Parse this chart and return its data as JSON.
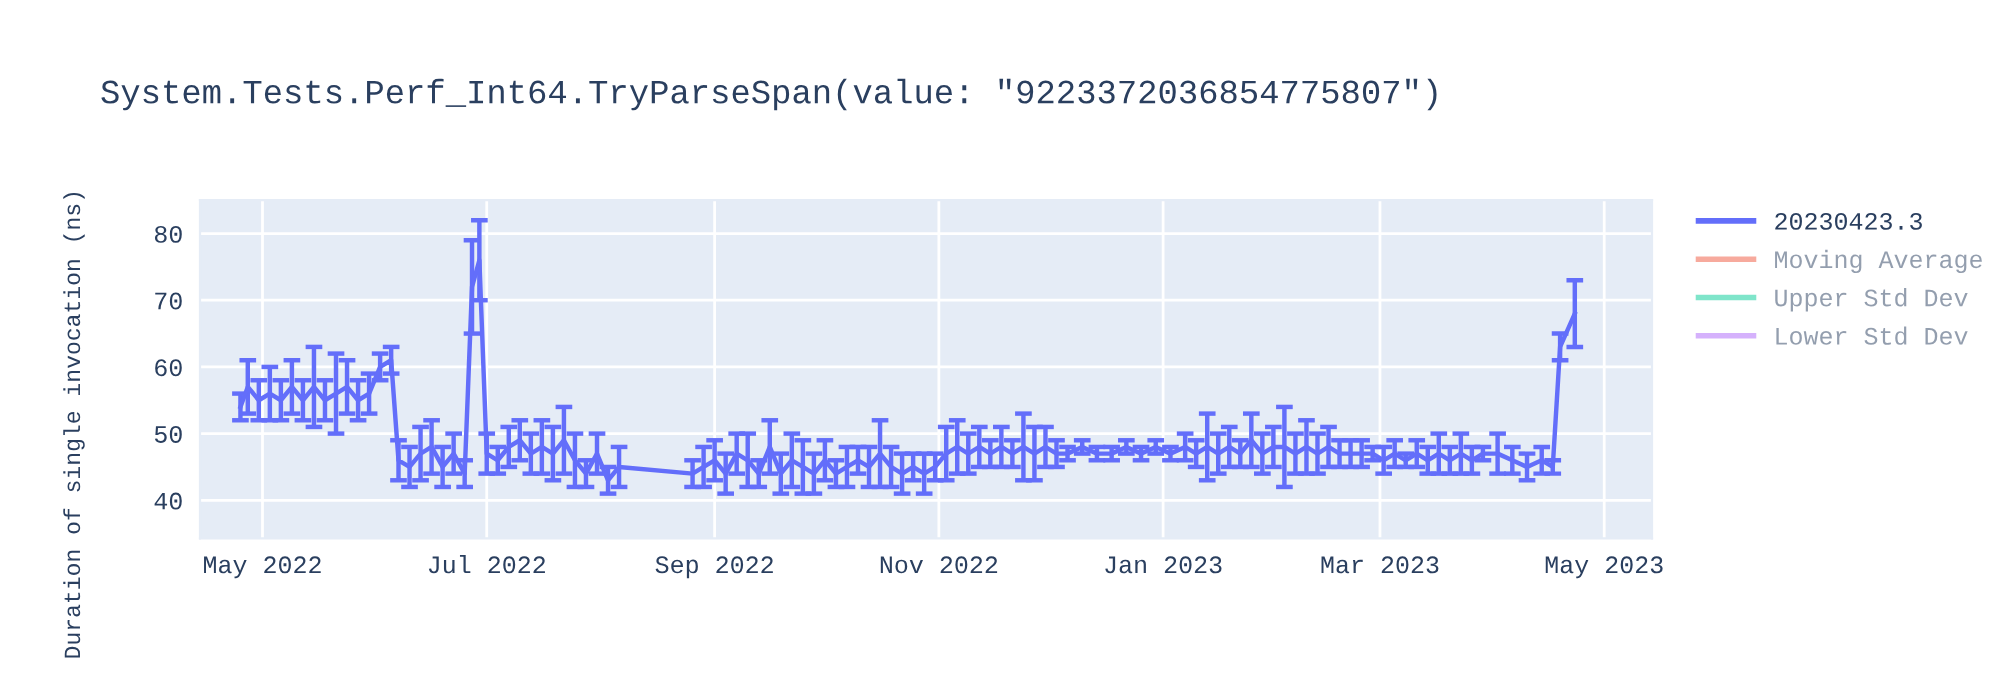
{
  "chart_data": {
    "type": "line",
    "title": "System.Tests.Perf_Int64.TryParseSpan(value: \"9223372036854775807\")",
    "ylabel": "Duration of single invocation (ns)",
    "x": [
      "2022-04-25",
      "2022-04-27",
      "2022-04-30",
      "2022-05-03",
      "2022-05-06",
      "2022-05-09",
      "2022-05-12",
      "2022-05-15",
      "2022-05-18",
      "2022-05-21",
      "2022-05-24",
      "2022-05-27",
      "2022-05-30",
      "2022-06-02",
      "2022-06-05",
      "2022-06-07",
      "2022-06-10",
      "2022-06-13",
      "2022-06-16",
      "2022-06-19",
      "2022-06-22",
      "2022-06-25",
      "2022-06-27",
      "2022-06-29",
      "2022-07-01",
      "2022-07-04",
      "2022-07-07",
      "2022-07-10",
      "2022-07-13",
      "2022-07-16",
      "2022-07-19",
      "2022-07-22",
      "2022-07-25",
      "2022-07-28",
      "2022-07-31",
      "2022-08-03",
      "2022-08-06",
      "2022-08-26",
      "2022-08-29",
      "2022-09-01",
      "2022-09-04",
      "2022-09-07",
      "2022-09-10",
      "2022-09-13",
      "2022-09-16",
      "2022-09-19",
      "2022-09-22",
      "2022-09-25",
      "2022-09-28",
      "2022-10-01",
      "2022-10-04",
      "2022-10-07",
      "2022-10-10",
      "2022-10-13",
      "2022-10-16",
      "2022-10-19",
      "2022-10-22",
      "2022-10-25",
      "2022-10-28",
      "2022-10-31",
      "2022-11-03",
      "2022-11-06",
      "2022-11-09",
      "2022-11-12",
      "2022-11-15",
      "2022-11-18",
      "2022-11-21",
      "2022-11-24",
      "2022-11-27",
      "2022-11-30",
      "2022-12-03",
      "2022-12-06",
      "2022-12-10",
      "2022-12-14",
      "2022-12-18",
      "2022-12-22",
      "2022-12-26",
      "2022-12-30",
      "2023-01-03",
      "2023-01-07",
      "2023-01-10",
      "2023-01-13",
      "2023-01-16",
      "2023-01-19",
      "2023-01-22",
      "2023-01-25",
      "2023-01-28",
      "2023-01-31",
      "2023-02-03",
      "2023-02-06",
      "2023-02-09",
      "2023-02-12",
      "2023-02-15",
      "2023-02-18",
      "2023-02-21",
      "2023-02-24",
      "2023-02-27",
      "2023-03-02",
      "2023-03-05",
      "2023-03-08",
      "2023-03-11",
      "2023-03-14",
      "2023-03-17",
      "2023-03-20",
      "2023-03-23",
      "2023-03-26",
      "2023-03-29",
      "2023-04-02",
      "2023-04-06",
      "2023-04-10",
      "2023-04-14",
      "2023-04-17",
      "2023-04-19",
      "2023-04-23"
    ],
    "series": [
      {
        "name": "20230423.3",
        "color": "#636efa",
        "values": [
          54,
          57,
          55,
          56,
          55,
          57,
          55,
          57,
          55,
          56,
          57,
          55,
          56,
          60,
          61,
          46,
          45,
          47,
          48,
          45,
          47,
          44,
          72,
          76,
          47,
          46,
          48,
          49,
          47,
          48,
          47,
          49,
          46,
          44,
          47,
          43,
          45,
          44,
          45,
          46,
          44,
          47,
          46,
          44,
          48,
          44,
          46,
          45,
          44,
          46,
          44,
          45,
          46,
          45,
          47,
          45,
          44,
          45,
          44,
          45,
          47,
          48,
          47,
          48,
          47,
          48,
          47,
          48,
          47,
          48,
          47,
          47,
          48,
          47,
          47,
          48,
          47,
          48,
          47,
          48,
          47,
          48,
          47,
          48,
          47,
          49,
          47,
          48,
          48,
          47,
          48,
          47,
          48,
          47,
          47,
          47,
          47,
          46,
          47,
          46,
          47,
          46,
          47,
          46,
          47,
          46,
          47,
          47,
          46,
          45,
          46,
          45,
          63,
          68
        ],
        "errors": [
          2,
          4,
          3,
          4,
          3,
          4,
          3,
          6,
          3,
          6,
          4,
          3,
          3,
          2,
          2,
          3,
          3,
          4,
          4,
          3,
          3,
          2,
          7,
          6,
          3,
          2,
          3,
          3,
          3,
          4,
          4,
          5,
          4,
          2,
          3,
          2,
          3,
          2,
          3,
          3,
          3,
          3,
          4,
          2,
          4,
          3,
          4,
          4,
          3,
          3,
          2,
          3,
          2,
          3,
          5,
          3,
          3,
          2,
          3,
          2,
          4,
          4,
          3,
          3,
          2,
          3,
          2,
          5,
          4,
          3,
          2,
          1,
          1,
          1,
          1,
          1,
          1,
          1,
          1,
          2,
          2,
          5,
          3,
          3,
          2,
          4,
          3,
          3,
          6,
          3,
          4,
          3,
          3,
          2,
          2,
          2,
          1,
          2,
          2,
          1,
          2,
          2,
          3,
          2,
          3,
          2,
          1,
          3,
          2,
          2,
          2,
          1,
          2,
          5
        ]
      },
      {
        "name": "Moving Average",
        "color": "#ef553b",
        "values": [
          null,
          null,
          null,
          null,
          null,
          null,
          null,
          null,
          null,
          null,
          null,
          null,
          null,
          null,
          null,
          null,
          null,
          null,
          null,
          null,
          null,
          null,
          null,
          null,
          null,
          null,
          null,
          null,
          null,
          null,
          null,
          null,
          null,
          null,
          null,
          null,
          null,
          null,
          null,
          null,
          null,
          null,
          null,
          null,
          null,
          null,
          null,
          null,
          null,
          null,
          null,
          null,
          null,
          null,
          null,
          null,
          null,
          null,
          null,
          null,
          null,
          null,
          null,
          null,
          null,
          null,
          null,
          null,
          null,
          null,
          null,
          null,
          null,
          null,
          null,
          null,
          null,
          null,
          null,
          null,
          null,
          null,
          null,
          null,
          null,
          null,
          null,
          null,
          null,
          null,
          null,
          null,
          null,
          null,
          null,
          null,
          null,
          null,
          null,
          null,
          null,
          null,
          null,
          null,
          null,
          null,
          null,
          null,
          null,
          null,
          null,
          null,
          null,
          null
        ]
      },
      {
        "name": "Upper Std Dev",
        "color": "#00cc96",
        "values": [
          null,
          null,
          null,
          null,
          null,
          null,
          null,
          null,
          null,
          null,
          null,
          null,
          null,
          null,
          null,
          null,
          null,
          null,
          null,
          null,
          null,
          null,
          null,
          null,
          null,
          null,
          null,
          null,
          null,
          null,
          null,
          null,
          null,
          null,
          null,
          null,
          null,
          null,
          null,
          null,
          null,
          null,
          null,
          null,
          null,
          null,
          null,
          null,
          null,
          null,
          null,
          null,
          null,
          null,
          null,
          null,
          null,
          null,
          null,
          null,
          null,
          null,
          null,
          null,
          null,
          null,
          null,
          null,
          null,
          null,
          null,
          null,
          null,
          null,
          null,
          null,
          null,
          null,
          null,
          null,
          null,
          null,
          null,
          null,
          null,
          null,
          null,
          null,
          null,
          null,
          null,
          null,
          null,
          null,
          null,
          null,
          null,
          null,
          null,
          null,
          null,
          null,
          null,
          null,
          null,
          null,
          null,
          null,
          null,
          null,
          null,
          null,
          null,
          null
        ]
      },
      {
        "name": "Lower Std Dev",
        "color": "#ab63fa",
        "values": [
          null,
          null,
          null,
          null,
          null,
          null,
          null,
          null,
          null,
          null,
          null,
          null,
          null,
          null,
          null,
          null,
          null,
          null,
          null,
          null,
          null,
          null,
          null,
          null,
          null,
          null,
          null,
          null,
          null,
          null,
          null,
          null,
          null,
          null,
          null,
          null,
          null,
          null,
          null,
          null,
          null,
          null,
          null,
          null,
          null,
          null,
          null,
          null,
          null,
          null,
          null,
          null,
          null,
          null,
          null,
          null,
          null,
          null,
          null,
          null,
          null,
          null,
          null,
          null,
          null,
          null,
          null,
          null,
          null,
          null,
          null,
          null,
          null,
          null,
          null,
          null,
          null,
          null,
          null,
          null,
          null,
          null,
          null,
          null,
          null,
          null,
          null,
          null,
          null,
          null,
          null,
          null,
          null,
          null,
          null,
          null,
          null,
          null,
          null,
          null,
          null,
          null,
          null,
          null,
          null,
          null,
          null,
          null,
          null,
          null,
          null,
          null,
          null,
          null
        ]
      }
    ],
    "xlim": [
      "2022-04-14",
      "2023-05-14"
    ],
    "xticks": [
      {
        "value": "2022-05-01",
        "label": "May 2022"
      },
      {
        "value": "2022-07-01",
        "label": "Jul 2022"
      },
      {
        "value": "2022-09-01",
        "label": "Sep 2022"
      },
      {
        "value": "2022-11-01",
        "label": "Nov 2022"
      },
      {
        "value": "2023-01-01",
        "label": "Jan 2023"
      },
      {
        "value": "2023-03-01",
        "label": "Mar 2023"
      },
      {
        "value": "2023-05-01",
        "label": "May 2023"
      }
    ],
    "ylim": [
      34.3,
      85
    ],
    "yticks": [
      40,
      50,
      60,
      70,
      80
    ],
    "grid": true,
    "legend": "top right"
  }
}
